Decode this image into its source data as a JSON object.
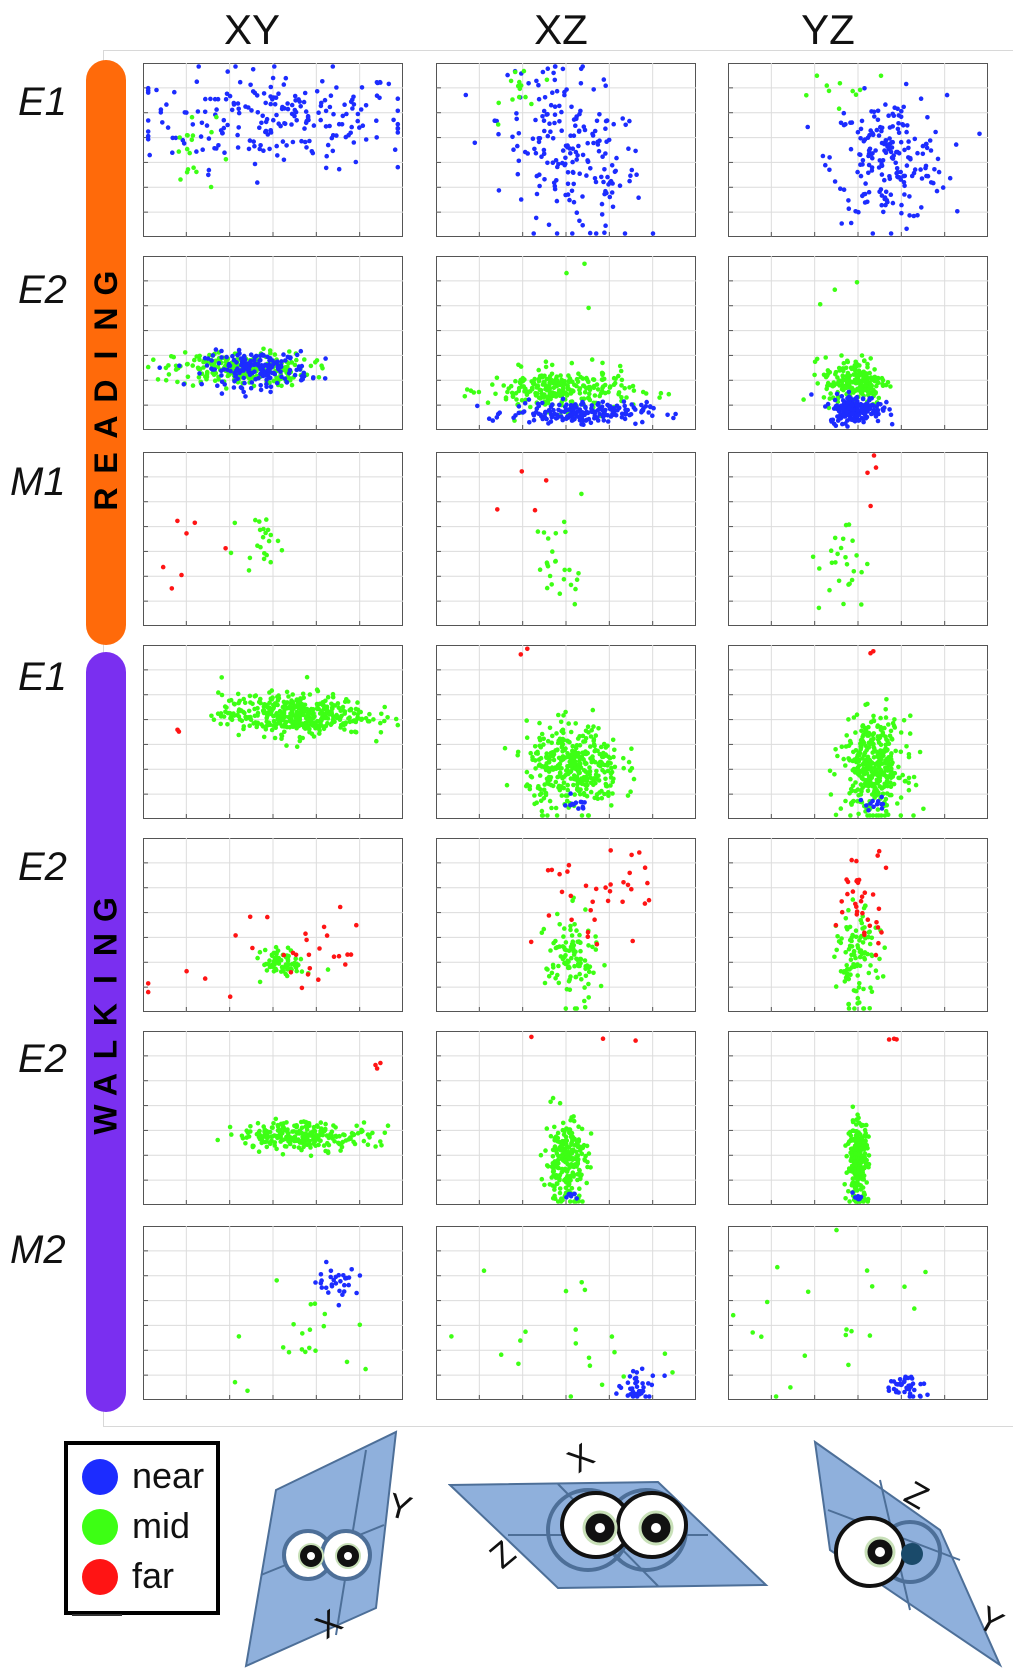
{
  "columns": [
    "XY",
    "XZ",
    "YZ"
  ],
  "groups": [
    {
      "name": "READING",
      "color": "#ff6a0a"
    },
    {
      "name": "WALKING",
      "color": "#7a2ff0"
    }
  ],
  "rows": [
    "E1",
    "E2",
    "M1",
    "E1",
    "E2",
    "E2",
    "M2"
  ],
  "legend": [
    {
      "label": "near",
      "color": "#1c2cff"
    },
    {
      "label": "mid",
      "color": "#3dff14"
    },
    {
      "label": "far",
      "color": "#ff1414"
    }
  ],
  "axes_icons": {
    "XY": {
      "label_a": "Y",
      "label_b": "X"
    },
    "XZ": {
      "label_a": "X",
      "label_b": "Z"
    },
    "YZ": {
      "label_a": "Z",
      "label_b": "Y"
    }
  },
  "chart_data": {
    "type": "scatter",
    "layout": "small-multiples grid, 7 rows × 3 columns",
    "grid": true,
    "xlim": [
      0,
      1
    ],
    "ylim": [
      0,
      1
    ],
    "series": [
      "near",
      "mid",
      "far"
    ],
    "panels": [
      {
        "row": 0,
        "col": 0,
        "clusters": [
          {
            "series": "near",
            "cx": 0.52,
            "cy": 0.68,
            "sx": 0.26,
            "sy": 0.14,
            "n": 220
          },
          {
            "series": "mid",
            "cx": 0.18,
            "cy": 0.48,
            "sx": 0.05,
            "sy": 0.12,
            "n": 18
          }
        ]
      },
      {
        "row": 0,
        "col": 1,
        "clusters": [
          {
            "series": "near",
            "cx": 0.52,
            "cy": 0.48,
            "sx": 0.14,
            "sy": 0.22,
            "n": 200,
            "slope": -1.4
          },
          {
            "series": "mid",
            "cx": 0.33,
            "cy": 0.85,
            "sx": 0.04,
            "sy": 0.08,
            "n": 14
          }
        ]
      },
      {
        "row": 0,
        "col": 2,
        "clusters": [
          {
            "series": "near",
            "cx": 0.62,
            "cy": 0.45,
            "sx": 0.11,
            "sy": 0.18,
            "n": 200
          },
          {
            "series": "mid",
            "cx": 0.45,
            "cy": 0.88,
            "sx": 0.12,
            "sy": 0.05,
            "n": 10
          }
        ]
      },
      {
        "row": 1,
        "col": 0,
        "clusters": [
          {
            "series": "mid",
            "cx": 0.38,
            "cy": 0.35,
            "sx": 0.13,
            "sy": 0.05,
            "n": 260
          },
          {
            "series": "near",
            "cx": 0.44,
            "cy": 0.35,
            "sx": 0.1,
            "sy": 0.05,
            "n": 180
          }
        ]
      },
      {
        "row": 1,
        "col": 1,
        "clusters": [
          {
            "series": "mid",
            "cx": 0.48,
            "cy": 0.23,
            "sx": 0.14,
            "sy": 0.06,
            "n": 260
          },
          {
            "series": "near",
            "cx": 0.55,
            "cy": 0.1,
            "sx": 0.13,
            "sy": 0.03,
            "n": 200
          },
          {
            "series": "mid",
            "cx": 0.5,
            "cy": 0.75,
            "sx": 0.05,
            "sy": 0.15,
            "n": 3
          }
        ]
      },
      {
        "row": 1,
        "col": 2,
        "clusters": [
          {
            "series": "mid",
            "cx": 0.49,
            "cy": 0.28,
            "sx": 0.06,
            "sy": 0.07,
            "n": 200
          },
          {
            "series": "near",
            "cx": 0.49,
            "cy": 0.12,
            "sx": 0.05,
            "sy": 0.04,
            "n": 200
          },
          {
            "series": "mid",
            "cx": 0.4,
            "cy": 0.8,
            "sx": 0.06,
            "sy": 0.15,
            "n": 3
          }
        ]
      },
      {
        "row": 2,
        "col": 0,
        "clusters": [
          {
            "series": "mid",
            "cx": 0.45,
            "cy": 0.5,
            "sx": 0.04,
            "sy": 0.06,
            "n": 22
          },
          {
            "series": "far",
            "cx": 0.22,
            "cy": 0.4,
            "sx": 0.12,
            "sy": 0.15,
            "n": 7
          }
        ]
      },
      {
        "row": 2,
        "col": 1,
        "clusters": [
          {
            "series": "mid",
            "cx": 0.48,
            "cy": 0.35,
            "sx": 0.05,
            "sy": 0.15,
            "n": 26
          },
          {
            "series": "far",
            "cx": 0.33,
            "cy": 0.8,
            "sx": 0.05,
            "sy": 0.12,
            "n": 4
          }
        ]
      },
      {
        "row": 2,
        "col": 2,
        "clusters": [
          {
            "series": "mid",
            "cx": 0.45,
            "cy": 0.35,
            "sx": 0.05,
            "sy": 0.15,
            "n": 26
          },
          {
            "series": "far",
            "cx": 0.52,
            "cy": 0.8,
            "sx": 0.08,
            "sy": 0.1,
            "n": 4
          }
        ]
      },
      {
        "row": 3,
        "col": 0,
        "clusters": [
          {
            "series": "mid",
            "cx": 0.58,
            "cy": 0.6,
            "sx": 0.14,
            "sy": 0.06,
            "n": 420
          },
          {
            "series": "far",
            "cx": 0.16,
            "cy": 0.52,
            "sx": 0.02,
            "sy": 0.02,
            "n": 2
          }
        ]
      },
      {
        "row": 3,
        "col": 1,
        "clusters": [
          {
            "series": "mid",
            "cx": 0.53,
            "cy": 0.3,
            "sx": 0.09,
            "sy": 0.12,
            "n": 380
          },
          {
            "series": "near",
            "cx": 0.53,
            "cy": 0.08,
            "sx": 0.03,
            "sy": 0.02,
            "n": 12
          },
          {
            "series": "far",
            "cx": 0.37,
            "cy": 0.96,
            "sx": 0.06,
            "sy": 0.01,
            "n": 2
          }
        ]
      },
      {
        "row": 3,
        "col": 2,
        "clusters": [
          {
            "series": "mid",
            "cx": 0.56,
            "cy": 0.3,
            "sx": 0.06,
            "sy": 0.14,
            "n": 380
          },
          {
            "series": "near",
            "cx": 0.56,
            "cy": 0.08,
            "sx": 0.03,
            "sy": 0.02,
            "n": 12
          },
          {
            "series": "far",
            "cx": 0.56,
            "cy": 0.96,
            "sx": 0.03,
            "sy": 0.01,
            "n": 2
          }
        ]
      },
      {
        "row": 4,
        "col": 0,
        "clusters": [
          {
            "series": "mid",
            "cx": 0.54,
            "cy": 0.28,
            "sx": 0.04,
            "sy": 0.04,
            "n": 70
          },
          {
            "series": "far",
            "cx": 0.55,
            "cy": 0.35,
            "sx": 0.2,
            "sy": 0.2,
            "n": 30
          }
        ]
      },
      {
        "row": 4,
        "col": 1,
        "clusters": [
          {
            "series": "mid",
            "cx": 0.52,
            "cy": 0.3,
            "sx": 0.05,
            "sy": 0.13,
            "n": 110
          },
          {
            "series": "far",
            "cx": 0.6,
            "cy": 0.65,
            "sx": 0.12,
            "sy": 0.14,
            "n": 35
          }
        ]
      },
      {
        "row": 4,
        "col": 2,
        "clusters": [
          {
            "series": "mid",
            "cx": 0.5,
            "cy": 0.3,
            "sx": 0.04,
            "sy": 0.14,
            "n": 110
          },
          {
            "series": "far",
            "cx": 0.52,
            "cy": 0.65,
            "sx": 0.06,
            "sy": 0.14,
            "n": 35
          }
        ]
      },
      {
        "row": 5,
        "col": 0,
        "clusters": [
          {
            "series": "mid",
            "cx": 0.62,
            "cy": 0.4,
            "sx": 0.13,
            "sy": 0.04,
            "n": 240
          },
          {
            "series": "far",
            "cx": 0.9,
            "cy": 0.8,
            "sx": 0.01,
            "sy": 0.02,
            "n": 3
          }
        ]
      },
      {
        "row": 5,
        "col": 1,
        "clusters": [
          {
            "series": "mid",
            "cx": 0.5,
            "cy": 0.25,
            "sx": 0.04,
            "sy": 0.12,
            "n": 240
          },
          {
            "series": "near",
            "cx": 0.52,
            "cy": 0.05,
            "sx": 0.01,
            "sy": 0.01,
            "n": 8
          },
          {
            "series": "far",
            "cx": 0.5,
            "cy": 0.95,
            "sx": 0.15,
            "sy": 0.01,
            "n": 3
          }
        ]
      },
      {
        "row": 5,
        "col": 2,
        "clusters": [
          {
            "series": "mid",
            "cx": 0.5,
            "cy": 0.25,
            "sx": 0.02,
            "sy": 0.12,
            "n": 240
          },
          {
            "series": "near",
            "cx": 0.5,
            "cy": 0.05,
            "sx": 0.01,
            "sy": 0.01,
            "n": 8
          },
          {
            "series": "far",
            "cx": 0.63,
            "cy": 0.95,
            "sx": 0.06,
            "sy": 0.01,
            "n": 3
          }
        ]
      },
      {
        "row": 6,
        "col": 0,
        "clusters": [
          {
            "series": "near",
            "cx": 0.75,
            "cy": 0.68,
            "sx": 0.04,
            "sy": 0.04,
            "n": 30
          },
          {
            "series": "mid",
            "cx": 0.6,
            "cy": 0.4,
            "sx": 0.15,
            "sy": 0.2,
            "n": 20
          }
        ]
      },
      {
        "row": 6,
        "col": 1,
        "clusters": [
          {
            "series": "near",
            "cx": 0.78,
            "cy": 0.07,
            "sx": 0.04,
            "sy": 0.04,
            "n": 40
          },
          {
            "series": "mid",
            "cx": 0.6,
            "cy": 0.35,
            "sx": 0.2,
            "sy": 0.25,
            "n": 20
          }
        ]
      },
      {
        "row": 6,
        "col": 2,
        "clusters": [
          {
            "series": "near",
            "cx": 0.68,
            "cy": 0.07,
            "sx": 0.04,
            "sy": 0.04,
            "n": 40
          },
          {
            "series": "mid",
            "cx": 0.45,
            "cy": 0.45,
            "sx": 0.2,
            "sy": 0.25,
            "n": 20
          }
        ]
      }
    ]
  }
}
